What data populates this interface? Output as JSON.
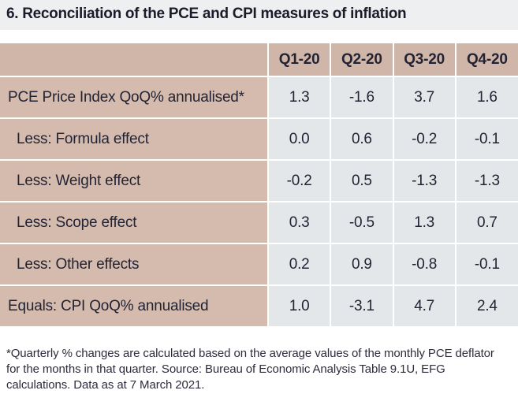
{
  "title": "6. Reconciliation of the PCE and CPI measures of inflation",
  "table": {
    "columns": [
      "Q1-20",
      "Q2-20",
      "Q3-20",
      "Q4-20"
    ],
    "rows": [
      {
        "label": "PCE Price Index QoQ% annualised*",
        "values": [
          "1.3",
          "-1.6",
          "3.7",
          "1.6"
        ]
      },
      {
        "label": "Less: Formula effect",
        "values": [
          "0.0",
          "0.6",
          "-0.2",
          "-0.1"
        ]
      },
      {
        "label": "Less: Weight effect",
        "values": [
          "-0.2",
          "0.5",
          "-1.3",
          "-1.3"
        ]
      },
      {
        "label": "Less: Scope effect",
        "values": [
          "0.3",
          "-0.5",
          "1.3",
          "0.7"
        ]
      },
      {
        "label": "Less: Other effects",
        "values": [
          "0.2",
          "0.9",
          "-0.8",
          "-0.1"
        ]
      },
      {
        "label": "Equals: CPI QoQ% annualised",
        "values": [
          "1.0",
          "-3.1",
          "4.7",
          "2.4"
        ]
      }
    ]
  },
  "footnote": "*Quarterly % changes are calculated based on the average values of the monthly PCE deflator for the months in that quarter. Source: Bureau of Economic Analysis Table 9.1U, EFG calculations. Data as at 7 March 2021.",
  "colors": {
    "title_bar_bg": "#edeff1",
    "header_cell_bg": "#d0b6a8",
    "label_cell_bg": "#d4bbad",
    "value_cell_bg": "#e4e7e9",
    "separator": "#ffffff",
    "text": "#232334"
  },
  "chart_data": {
    "type": "table",
    "title": "6. Reconciliation of the PCE and CPI measures of inflation",
    "columns": [
      "",
      "Q1-20",
      "Q2-20",
      "Q3-20",
      "Q4-20"
    ],
    "rows": [
      [
        "PCE Price Index QoQ% annualised*",
        1.3,
        -1.6,
        3.7,
        1.6
      ],
      [
        "Less: Formula effect",
        0.0,
        0.6,
        -0.2,
        -0.1
      ],
      [
        "Less: Weight effect",
        -0.2,
        0.5,
        -1.3,
        -1.3
      ],
      [
        "Less: Scope effect",
        0.3,
        -0.5,
        1.3,
        0.7
      ],
      [
        "Less: Other effects",
        0.2,
        0.9,
        -0.8,
        -0.1
      ],
      [
        "Equals: CPI QoQ% annualised",
        1.0,
        -3.1,
        4.7,
        2.4
      ]
    ],
    "footnote": "*Quarterly % changes are calculated based on the average values of the monthly PCE deflator for the months in that quarter. Source: Bureau of Economic Analysis Table 9.1U, EFG calculations. Data as at 7 March 2021."
  }
}
